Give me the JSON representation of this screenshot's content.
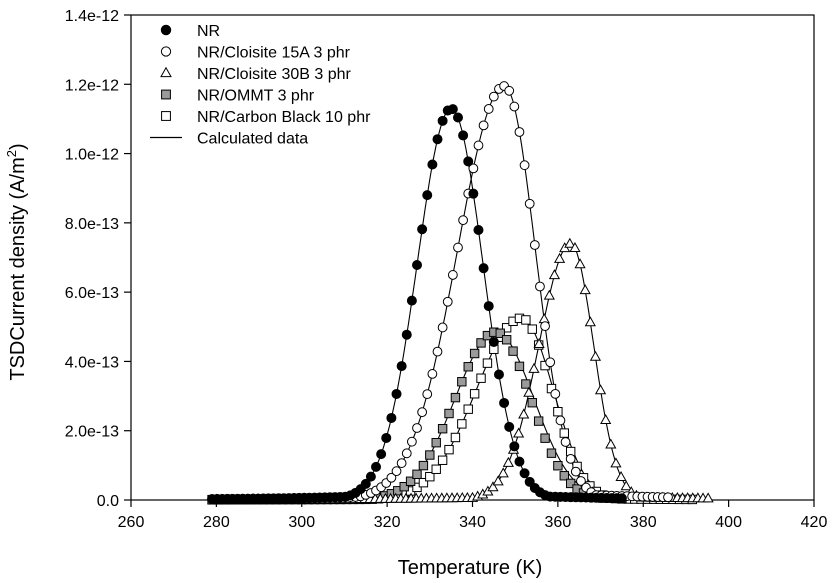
{
  "chart_data": {
    "type": "scatter",
    "title": "",
    "xlabel": "Temperature (K)",
    "ylabel": "TSDCurrent density (A/m²)",
    "ylabel_main": "TSDCurrent density (A/m",
    "ylabel_sup": "2",
    "ylabel_close": ")",
    "xlim": [
      260,
      420
    ],
    "ylim": [
      0,
      1.4e-12
    ],
    "x_ticks": [
      260,
      280,
      300,
      320,
      340,
      360,
      380,
      400,
      420
    ],
    "y_ticks": [
      0,
      2e-13,
      4e-13,
      6e-13,
      8e-13,
      1e-12,
      1.2e-12,
      1.4e-12
    ],
    "x_tick_labels": [
      "260",
      "280",
      "300",
      "320",
      "340",
      "360",
      "380",
      "400",
      "420"
    ],
    "y_tick_labels": [
      "0.0",
      "2.0e-13",
      "4.0e-13",
      "6.0e-13",
      "8.0e-13",
      "1.0e-12",
      "1.2e-12",
      "1.4e-12"
    ],
    "grid": false,
    "legend_position": "top-left",
    "series": [
      {
        "name": "NR",
        "marker": "circle-filled",
        "x_start": 279,
        "x_end": 375,
        "x_step": 1.2,
        "peak_x": 335,
        "peak_y": 1.13e-12,
        "width_low": 11.2,
        "width_high": 10.5,
        "tail_level": 2.5e-14,
        "tail_rate": 0.04
      },
      {
        "name": "NR/Cloisite 15A 3 phr",
        "marker": "circle-open",
        "x_start": 279,
        "x_end": 386,
        "x_step": 1.2,
        "peak_x": 347.5,
        "peak_y": 1.195e-12,
        "width_low": 15.5,
        "width_high": 10.2,
        "tail_level": 3e-14,
        "tail_rate": 0.035
      },
      {
        "name": "NR/Cloisite 30B 3 phr",
        "marker": "triangle-open",
        "x_start": 280,
        "x_end": 396,
        "x_step": 1.2,
        "peak_x": 363,
        "peak_y": 7.4e-13,
        "width_low": 10.5,
        "width_high": 7.6,
        "tail_level": 1.2e-14,
        "tail_rate": 0.03
      },
      {
        "name": "NR/OMMT 3 phr",
        "marker": "square-gray",
        "x_start": 279,
        "x_end": 376,
        "x_step": 1.5,
        "peak_x": 345.5,
        "peak_y": 4.85e-13,
        "width_low": 13.5,
        "width_high": 11.5,
        "tail_level": 1.5e-14,
        "tail_rate": 0.04
      },
      {
        "name": "NR/Carbon Black 10 phr",
        "marker": "square-open",
        "x_start": 279,
        "x_end": 392,
        "x_step": 1.5,
        "peak_x": 351.5,
        "peak_y": 5.25e-13,
        "width_low": 15.0,
        "width_high": 10.0,
        "tail_level": 8e-15,
        "tail_rate": 0.04
      }
    ],
    "fits": [
      {
        "name": "Calculated data",
        "for": "NR",
        "x_start": 300,
        "x_end": 375,
        "peak_x": 335,
        "peak_y": 1.13e-12,
        "width_low": 11.2,
        "width_high": 10.5,
        "tail_level": 0,
        "tail_rate": 0.04
      },
      {
        "name": "Calculated data",
        "for": "NR/Cloisite 15A 3 phr",
        "x_start": 305,
        "x_end": 388,
        "peak_x": 347.5,
        "peak_y": 1.195e-12,
        "width_low": 15.5,
        "width_high": 10.2,
        "tail_level": 0,
        "tail_rate": 0.04
      },
      {
        "name": "Calculated data",
        "for": "NR/Cloisite 30B 3 phr",
        "x_start": 318,
        "x_end": 392,
        "peak_x": 363,
        "peak_y": 7.4e-13,
        "width_low": 10.5,
        "width_high": 7.6,
        "tail_level": 0,
        "tail_rate": 0.04
      },
      {
        "name": "Calculated data",
        "for": "NR/OMMT 3 phr",
        "x_start": 305,
        "x_end": 385,
        "peak_x": 345.5,
        "peak_y": 4.85e-13,
        "width_low": 13.5,
        "width_high": 12.5,
        "tail_level": 0,
        "tail_rate": 0.04
      },
      {
        "name": "Calculated data",
        "for": "NR/Carbon Black 10 phr",
        "x_start": 308,
        "x_end": 392,
        "peak_x": 351.5,
        "peak_y": 5.25e-13,
        "width_low": 15.0,
        "width_high": 10.5,
        "tail_level": 0,
        "tail_rate": 0.04
      }
    ],
    "legend": [
      {
        "label": "NR",
        "marker": "circle-filled"
      },
      {
        "label": "NR/Cloisite 15A 3 phr",
        "marker": "circle-open"
      },
      {
        "label": "NR/Cloisite 30B 3 phr",
        "marker": "triangle-open"
      },
      {
        "label": "NR/OMMT 3 phr",
        "marker": "square-gray"
      },
      {
        "label": "NR/Carbon Black 10 phr",
        "marker": "square-open"
      },
      {
        "label": "Calculated data",
        "marker": "line"
      }
    ],
    "colors": {
      "ink": "#000000",
      "gray_fill": "#9a9a9a",
      "background": "#ffffff"
    }
  }
}
